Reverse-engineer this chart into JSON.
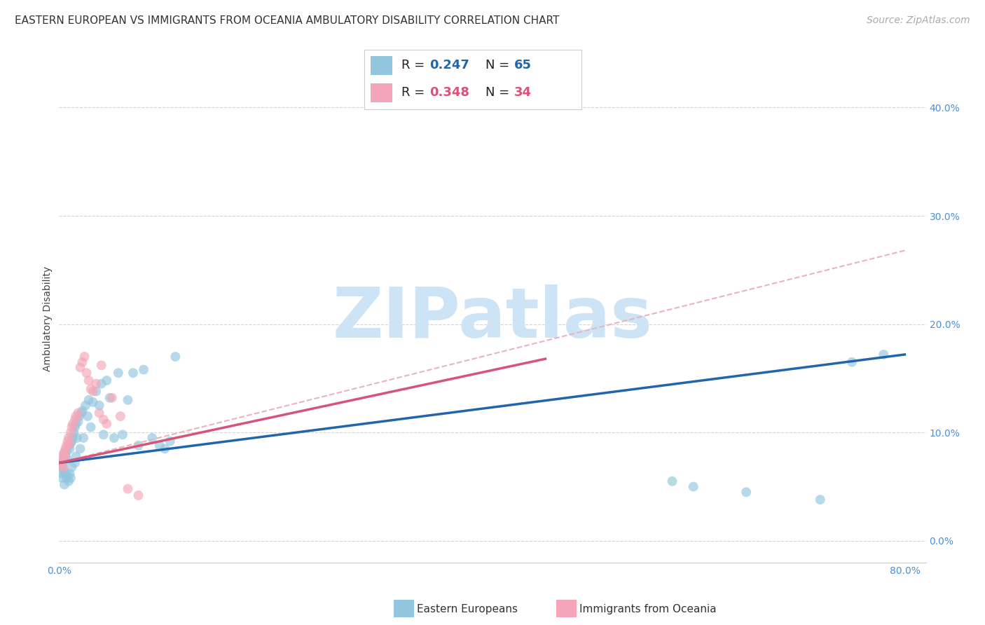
{
  "title": "EASTERN EUROPEAN VS IMMIGRANTS FROM OCEANIA AMBULATORY DISABILITY CORRELATION CHART",
  "source": "Source: ZipAtlas.com",
  "ylabel": "Ambulatory Disability",
  "blue_color": "#92c5de",
  "pink_color": "#f4a6b8",
  "blue_line_color": "#2166ac",
  "pink_line_color": "#d6537a",
  "pink_dash_color": "#e8b4c0",
  "background_color": "#ffffff",
  "grid_color": "#d0d0d0",
  "R_blue": "0.247",
  "N_blue": "65",
  "R_pink": "0.348",
  "N_pink": "34",
  "legend_label_blue": "Eastern Europeans",
  "legend_label_pink": "Immigrants from Oceania",
  "xlim": [
    0.0,
    0.82
  ],
  "ylim": [
    -0.02,
    0.43
  ],
  "blue_x": [
    0.001,
    0.002,
    0.002,
    0.003,
    0.003,
    0.004,
    0.004,
    0.005,
    0.005,
    0.006,
    0.006,
    0.007,
    0.007,
    0.008,
    0.008,
    0.009,
    0.009,
    0.01,
    0.01,
    0.011,
    0.011,
    0.012,
    0.012,
    0.013,
    0.014,
    0.015,
    0.015,
    0.016,
    0.016,
    0.017,
    0.018,
    0.019,
    0.02,
    0.021,
    0.022,
    0.023,
    0.025,
    0.027,
    0.028,
    0.03,
    0.032,
    0.035,
    0.038,
    0.04,
    0.042,
    0.045,
    0.048,
    0.052,
    0.056,
    0.06,
    0.065,
    0.07,
    0.075,
    0.08,
    0.088,
    0.095,
    0.1,
    0.105,
    0.11,
    0.58,
    0.6,
    0.65,
    0.72,
    0.75,
    0.78
  ],
  "blue_y": [
    0.068,
    0.072,
    0.062,
    0.07,
    0.058,
    0.075,
    0.065,
    0.08,
    0.052,
    0.078,
    0.062,
    0.082,
    0.058,
    0.075,
    0.06,
    0.088,
    0.055,
    0.085,
    0.062,
    0.09,
    0.058,
    0.092,
    0.068,
    0.095,
    0.1,
    0.105,
    0.072,
    0.108,
    0.078,
    0.095,
    0.11,
    0.115,
    0.085,
    0.118,
    0.12,
    0.095,
    0.125,
    0.115,
    0.13,
    0.105,
    0.128,
    0.138,
    0.125,
    0.145,
    0.098,
    0.148,
    0.132,
    0.095,
    0.155,
    0.098,
    0.13,
    0.155,
    0.088,
    0.158,
    0.095,
    0.088,
    0.085,
    0.092,
    0.17,
    0.055,
    0.05,
    0.045,
    0.038,
    0.165,
    0.172
  ],
  "pink_x": [
    0.001,
    0.002,
    0.003,
    0.004,
    0.004,
    0.005,
    0.006,
    0.006,
    0.007,
    0.008,
    0.009,
    0.01,
    0.011,
    0.012,
    0.013,
    0.015,
    0.016,
    0.018,
    0.02,
    0.022,
    0.024,
    0.026,
    0.028,
    0.03,
    0.032,
    0.035,
    0.038,
    0.04,
    0.042,
    0.045,
    0.05,
    0.058,
    0.065,
    0.075
  ],
  "pink_y": [
    0.072,
    0.075,
    0.07,
    0.08,
    0.068,
    0.082,
    0.078,
    0.085,
    0.088,
    0.092,
    0.095,
    0.09,
    0.1,
    0.105,
    0.108,
    0.112,
    0.115,
    0.118,
    0.16,
    0.165,
    0.17,
    0.155,
    0.148,
    0.14,
    0.138,
    0.145,
    0.118,
    0.162,
    0.112,
    0.108,
    0.132,
    0.115,
    0.048,
    0.042
  ],
  "blue_trend": [
    0.0,
    0.8,
    0.072,
    0.172
  ],
  "pink_solid": [
    0.0,
    0.46,
    0.072,
    0.168
  ],
  "pink_dash": [
    0.0,
    0.8,
    0.072,
    0.268
  ],
  "watermark": "ZIPatlas",
  "watermark_color": "#cce4f5",
  "title_fontsize": 11,
  "tick_fontsize": 10,
  "source_fontsize": 10
}
